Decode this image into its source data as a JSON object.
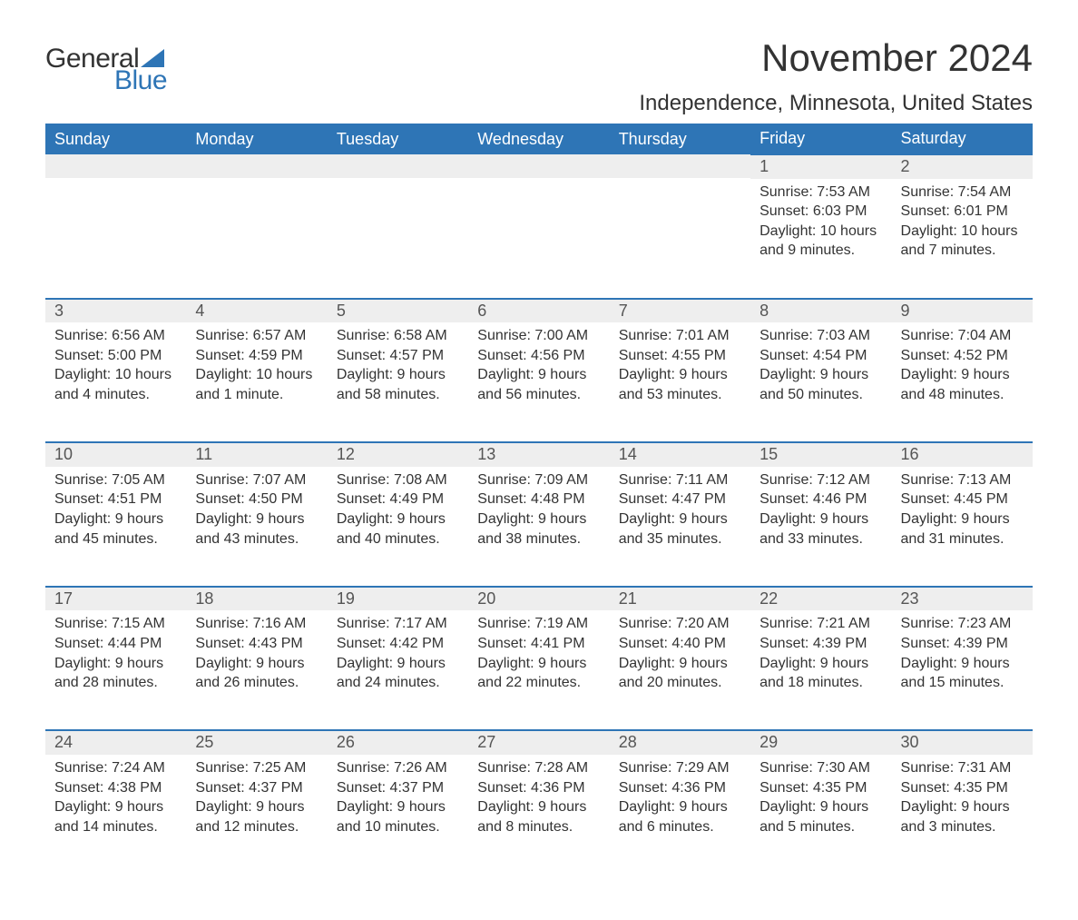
{
  "brand": {
    "word1": "General",
    "word2": "Blue",
    "sail_color": "#2e75b6",
    "word1_color": "#333333",
    "word2_color": "#2e75b6"
  },
  "title": "November 2024",
  "location": "Independence, Minnesota, United States",
  "colors": {
    "header_bg": "#2e75b6",
    "header_text": "#ffffff",
    "day_num_bg": "#eeeeee",
    "week_divider": "#2e75b6",
    "body_text": "#333333",
    "page_bg": "#ffffff"
  },
  "weekday_labels": [
    "Sunday",
    "Monday",
    "Tuesday",
    "Wednesday",
    "Thursday",
    "Friday",
    "Saturday"
  ],
  "weeks": [
    [
      null,
      null,
      null,
      null,
      null,
      {
        "n": "1",
        "sunrise": "Sunrise: 7:53 AM",
        "sunset": "Sunset: 6:03 PM",
        "day1": "Daylight: 10 hours",
        "day2": "and 9 minutes."
      },
      {
        "n": "2",
        "sunrise": "Sunrise: 7:54 AM",
        "sunset": "Sunset: 6:01 PM",
        "day1": "Daylight: 10 hours",
        "day2": "and 7 minutes."
      }
    ],
    [
      {
        "n": "3",
        "sunrise": "Sunrise: 6:56 AM",
        "sunset": "Sunset: 5:00 PM",
        "day1": "Daylight: 10 hours",
        "day2": "and 4 minutes."
      },
      {
        "n": "4",
        "sunrise": "Sunrise: 6:57 AM",
        "sunset": "Sunset: 4:59 PM",
        "day1": "Daylight: 10 hours",
        "day2": "and 1 minute."
      },
      {
        "n": "5",
        "sunrise": "Sunrise: 6:58 AM",
        "sunset": "Sunset: 4:57 PM",
        "day1": "Daylight: 9 hours",
        "day2": "and 58 minutes."
      },
      {
        "n": "6",
        "sunrise": "Sunrise: 7:00 AM",
        "sunset": "Sunset: 4:56 PM",
        "day1": "Daylight: 9 hours",
        "day2": "and 56 minutes."
      },
      {
        "n": "7",
        "sunrise": "Sunrise: 7:01 AM",
        "sunset": "Sunset: 4:55 PM",
        "day1": "Daylight: 9 hours",
        "day2": "and 53 minutes."
      },
      {
        "n": "8",
        "sunrise": "Sunrise: 7:03 AM",
        "sunset": "Sunset: 4:54 PM",
        "day1": "Daylight: 9 hours",
        "day2": "and 50 minutes."
      },
      {
        "n": "9",
        "sunrise": "Sunrise: 7:04 AM",
        "sunset": "Sunset: 4:52 PM",
        "day1": "Daylight: 9 hours",
        "day2": "and 48 minutes."
      }
    ],
    [
      {
        "n": "10",
        "sunrise": "Sunrise: 7:05 AM",
        "sunset": "Sunset: 4:51 PM",
        "day1": "Daylight: 9 hours",
        "day2": "and 45 minutes."
      },
      {
        "n": "11",
        "sunrise": "Sunrise: 7:07 AM",
        "sunset": "Sunset: 4:50 PM",
        "day1": "Daylight: 9 hours",
        "day2": "and 43 minutes."
      },
      {
        "n": "12",
        "sunrise": "Sunrise: 7:08 AM",
        "sunset": "Sunset: 4:49 PM",
        "day1": "Daylight: 9 hours",
        "day2": "and 40 minutes."
      },
      {
        "n": "13",
        "sunrise": "Sunrise: 7:09 AM",
        "sunset": "Sunset: 4:48 PM",
        "day1": "Daylight: 9 hours",
        "day2": "and 38 minutes."
      },
      {
        "n": "14",
        "sunrise": "Sunrise: 7:11 AM",
        "sunset": "Sunset: 4:47 PM",
        "day1": "Daylight: 9 hours",
        "day2": "and 35 minutes."
      },
      {
        "n": "15",
        "sunrise": "Sunrise: 7:12 AM",
        "sunset": "Sunset: 4:46 PM",
        "day1": "Daylight: 9 hours",
        "day2": "and 33 minutes."
      },
      {
        "n": "16",
        "sunrise": "Sunrise: 7:13 AM",
        "sunset": "Sunset: 4:45 PM",
        "day1": "Daylight: 9 hours",
        "day2": "and 31 minutes."
      }
    ],
    [
      {
        "n": "17",
        "sunrise": "Sunrise: 7:15 AM",
        "sunset": "Sunset: 4:44 PM",
        "day1": "Daylight: 9 hours",
        "day2": "and 28 minutes."
      },
      {
        "n": "18",
        "sunrise": "Sunrise: 7:16 AM",
        "sunset": "Sunset: 4:43 PM",
        "day1": "Daylight: 9 hours",
        "day2": "and 26 minutes."
      },
      {
        "n": "19",
        "sunrise": "Sunrise: 7:17 AM",
        "sunset": "Sunset: 4:42 PM",
        "day1": "Daylight: 9 hours",
        "day2": "and 24 minutes."
      },
      {
        "n": "20",
        "sunrise": "Sunrise: 7:19 AM",
        "sunset": "Sunset: 4:41 PM",
        "day1": "Daylight: 9 hours",
        "day2": "and 22 minutes."
      },
      {
        "n": "21",
        "sunrise": "Sunrise: 7:20 AM",
        "sunset": "Sunset: 4:40 PM",
        "day1": "Daylight: 9 hours",
        "day2": "and 20 minutes."
      },
      {
        "n": "22",
        "sunrise": "Sunrise: 7:21 AM",
        "sunset": "Sunset: 4:39 PM",
        "day1": "Daylight: 9 hours",
        "day2": "and 18 minutes."
      },
      {
        "n": "23",
        "sunrise": "Sunrise: 7:23 AM",
        "sunset": "Sunset: 4:39 PM",
        "day1": "Daylight: 9 hours",
        "day2": "and 15 minutes."
      }
    ],
    [
      {
        "n": "24",
        "sunrise": "Sunrise: 7:24 AM",
        "sunset": "Sunset: 4:38 PM",
        "day1": "Daylight: 9 hours",
        "day2": "and 14 minutes."
      },
      {
        "n": "25",
        "sunrise": "Sunrise: 7:25 AM",
        "sunset": "Sunset: 4:37 PM",
        "day1": "Daylight: 9 hours",
        "day2": "and 12 minutes."
      },
      {
        "n": "26",
        "sunrise": "Sunrise: 7:26 AM",
        "sunset": "Sunset: 4:37 PM",
        "day1": "Daylight: 9 hours",
        "day2": "and 10 minutes."
      },
      {
        "n": "27",
        "sunrise": "Sunrise: 7:28 AM",
        "sunset": "Sunset: 4:36 PM",
        "day1": "Daylight: 9 hours",
        "day2": "and 8 minutes."
      },
      {
        "n": "28",
        "sunrise": "Sunrise: 7:29 AM",
        "sunset": "Sunset: 4:36 PM",
        "day1": "Daylight: 9 hours",
        "day2": "and 6 minutes."
      },
      {
        "n": "29",
        "sunrise": "Sunrise: 7:30 AM",
        "sunset": "Sunset: 4:35 PM",
        "day1": "Daylight: 9 hours",
        "day2": "and 5 minutes."
      },
      {
        "n": "30",
        "sunrise": "Sunrise: 7:31 AM",
        "sunset": "Sunset: 4:35 PM",
        "day1": "Daylight: 9 hours",
        "day2": "and 3 minutes."
      }
    ]
  ]
}
